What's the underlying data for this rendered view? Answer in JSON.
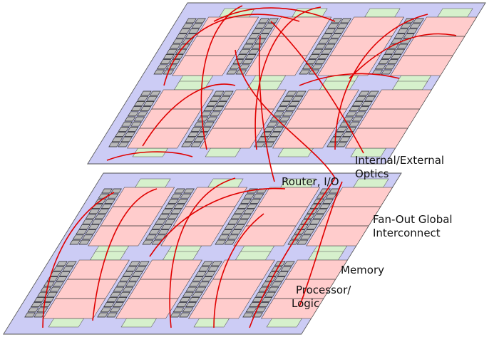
{
  "labels": [
    {
      "lines": [
        "Internal/External",
        "Optics"
      ]
    },
    {
      "lines": [
        "Router, I/O"
      ]
    },
    {
      "lines": [
        "Fan-Out Global",
        "Interconnect"
      ]
    },
    {
      "lines": [
        "Memory"
      ]
    },
    {
      "lines": [
        "Processor/",
        "Logic"
      ]
    }
  ]
}
